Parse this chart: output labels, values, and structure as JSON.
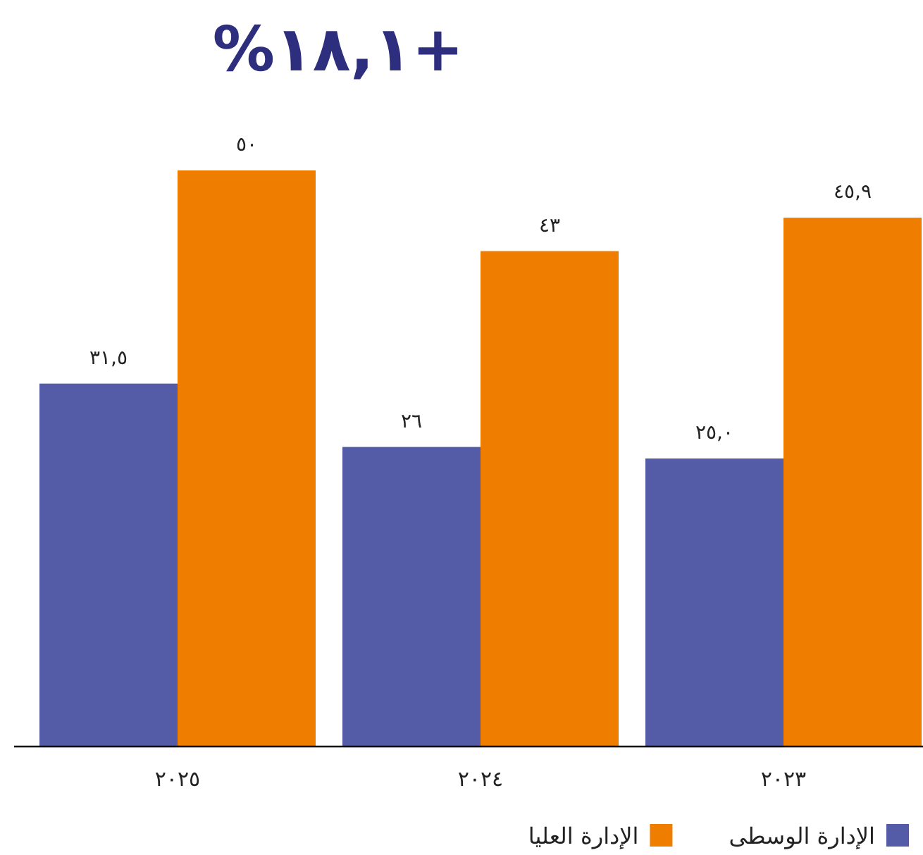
{
  "chart_data": {
    "type": "bar",
    "title": "+١٨,١%",
    "categories": [
      "٢٠٢٥",
      "٢٠٢٤",
      "٢٠٢٣"
    ],
    "legend": "bottom right",
    "series": [
      {
        "name": "الإدارة الوسطى",
        "color": "#545ca8",
        "values": [
          31.5,
          26,
          25.0
        ],
        "value_labels": [
          "٣١,٥",
          "٢٦",
          "٢٥,٠"
        ]
      },
      {
        "name": "الإدارة العليا",
        "color": "#ef7d00",
        "values": [
          50,
          43,
          45.9
        ],
        "value_labels": [
          "٥٠",
          "٤٣",
          "٤٥,٩"
        ]
      }
    ]
  }
}
